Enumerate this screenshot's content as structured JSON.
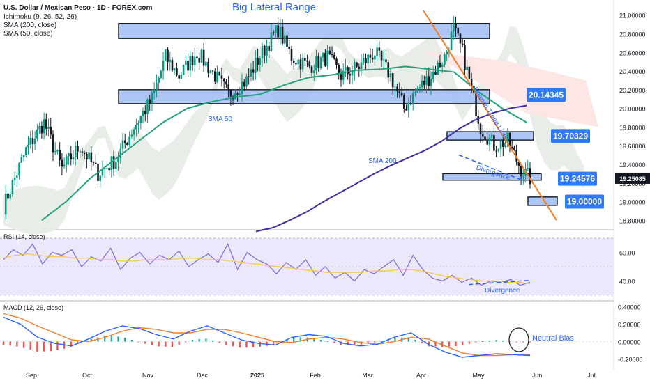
{
  "header": {
    "title": "U.S. Dollar / Mexican Peso · 1D · FOREX.com",
    "indicators": [
      "Ichimoku (9, 26, 52, 26)",
      "SMA (200, close)",
      "SMA (50, close)"
    ]
  },
  "annotations": {
    "range_label": "Big Lateral Range",
    "sma50_label": "SMA 50",
    "sma200_label": "SMA 200",
    "trendline_label": "Bearish Trend Line",
    "divergence_label": "Divergence",
    "rsi_divergence_label": "Divergence",
    "macd_bias_label": "Neutral Bias"
  },
  "colors": {
    "zone_fill": "#9fbcf5",
    "zone_border": "#101418",
    "label_bg": "#2f7bf5",
    "label_text": "#ffffff",
    "up_candle": "#089981",
    "down_candle": "#131722",
    "sma50": "#22a37d",
    "sma200": "#3c2fa0",
    "trendline": "#f57c24",
    "cloud": "#e8ede8",
    "cloud_red": "#fce6e6",
    "rsi": "#7b6bd1",
    "rsi_ma": "#f5c542",
    "rsi_band": "#ede7fb",
    "macd": "#2962ff",
    "signal": "#f57c24",
    "hist_up": "#26a69a",
    "hist_down": "#ef5350",
    "current_price_bg": "#131722"
  },
  "chart_data": [
    {
      "type": "candlestick",
      "title": "U.S. Dollar / Mexican Peso · 1D · FOREX.com",
      "x_axis": {
        "tick_labels": [
          "Sep",
          "Oct",
          "Nov",
          "Dec",
          "2025",
          "Feb",
          "Mar",
          "Apr",
          "May",
          "Jun",
          "Jul"
        ]
      },
      "y_axis": {
        "tick_labels": [
          "21.00000",
          "20.80000",
          "20.60000",
          "20.40000",
          "20.20000",
          "20.00000",
          "19.80000",
          "19.60000",
          "19.40000",
          "19.20000",
          "19.00000",
          "18.80000"
        ],
        "range": [
          18.78,
          21.05
        ]
      },
      "current_price": "19.25085",
      "levels": [
        {
          "value": 20.14345,
          "label": "20.14345"
        },
        {
          "value": 19.70329,
          "label": "19.70329"
        },
        {
          "value": 19.24576,
          "label": "19.24576"
        },
        {
          "value": 19.0,
          "label": "19.00000"
        }
      ],
      "zones": [
        {
          "low": 20.75,
          "high": 20.91
        },
        {
          "low": 20.05,
          "high": 20.2
        },
        {
          "low": 19.66,
          "high": 19.75
        },
        {
          "low": 19.23,
          "high": 19.3
        },
        {
          "low": 18.96,
          "high": 19.05
        }
      ],
      "series": [
        {
          "name": "SMA 50",
          "values": [
            18.8,
            19.0,
            19.25,
            19.45,
            19.65,
            19.85,
            20.0,
            20.07,
            20.12,
            20.15,
            20.25,
            20.33,
            20.36,
            20.41,
            20.42,
            20.45,
            20.42,
            20.39,
            20.18,
            20.0,
            19.85
          ]
        },
        {
          "name": "SMA 200",
          "values": [
            18.68,
            18.72,
            18.8,
            18.89,
            19.0,
            19.1,
            19.2,
            19.3,
            19.39,
            19.47,
            19.55,
            19.65,
            19.78,
            19.88,
            19.95,
            20.0,
            20.03
          ]
        }
      ],
      "trend_line": {
        "label": "Bearish Trend Line",
        "from": 21.05,
        "to": 18.8
      }
    },
    {
      "type": "line",
      "title": "RSI (14, close)",
      "y_axis": {
        "tick_labels": [
          "60.00",
          "40.00"
        ],
        "range": [
          28,
          72
        ]
      },
      "band": [
        30,
        70
      ],
      "midline": 50,
      "divergence_label": "Divergence",
      "series": [
        {
          "name": "RSI",
          "values": [
            55,
            62,
            58,
            66,
            52,
            60,
            58,
            62,
            50,
            57,
            54,
            63,
            48,
            56,
            60,
            52,
            58,
            55,
            61,
            50,
            55,
            59,
            53,
            66,
            48,
            60,
            55,
            52,
            45,
            53,
            48,
            55,
            44,
            50,
            42,
            46,
            40,
            48,
            45,
            50,
            55,
            44,
            58,
            48,
            42,
            40,
            44,
            39,
            42,
            37,
            40,
            39,
            41,
            37,
            39
          ]
        },
        {
          "name": "RSI MA",
          "values": [
            56,
            58,
            59,
            58,
            57,
            57,
            56,
            56,
            55,
            55,
            54,
            54,
            55,
            55,
            55,
            56,
            56,
            55,
            55,
            54,
            53,
            52,
            51,
            50,
            49,
            48,
            47,
            46,
            46,
            46,
            46,
            47,
            47,
            48,
            48,
            47,
            45,
            43,
            42,
            41,
            40,
            40,
            39,
            39,
            38
          ]
        }
      ]
    },
    {
      "type": "line",
      "title": "MACD (12, 26, close)",
      "y_axis": {
        "tick_labels": [
          "0.40000",
          "0.20000",
          "0.00000",
          "-0.20000"
        ],
        "range": [
          -0.3,
          0.42
        ]
      },
      "bias_label": "Neutral Bias",
      "series": [
        {
          "name": "MACD",
          "values": [
            0.28,
            0.2,
            0.05,
            -0.02,
            -0.05,
            0.03,
            0.12,
            0.18,
            0.15,
            0.08,
            0.03,
            0.12,
            0.18,
            0.1,
            0.02,
            -0.02,
            -0.04,
            0.05,
            0.08,
            0.06,
            -0.02,
            -0.05,
            -0.03,
            0.05,
            0.1,
            -0.03,
            -0.12,
            -0.18,
            -0.16,
            -0.14,
            -0.15,
            -0.16
          ]
        },
        {
          "name": "Signal",
          "values": [
            0.32,
            0.27,
            0.18,
            0.1,
            0.02,
            0.0,
            0.05,
            0.12,
            0.16,
            0.14,
            0.1,
            0.1,
            0.14,
            0.14,
            0.1,
            0.05,
            0.0,
            -0.01,
            0.03,
            0.05,
            0.03,
            -0.01,
            -0.03,
            0.0,
            0.05,
            0.03,
            -0.05,
            -0.13,
            -0.16,
            -0.16,
            -0.15,
            -0.15
          ]
        }
      ]
    }
  ]
}
